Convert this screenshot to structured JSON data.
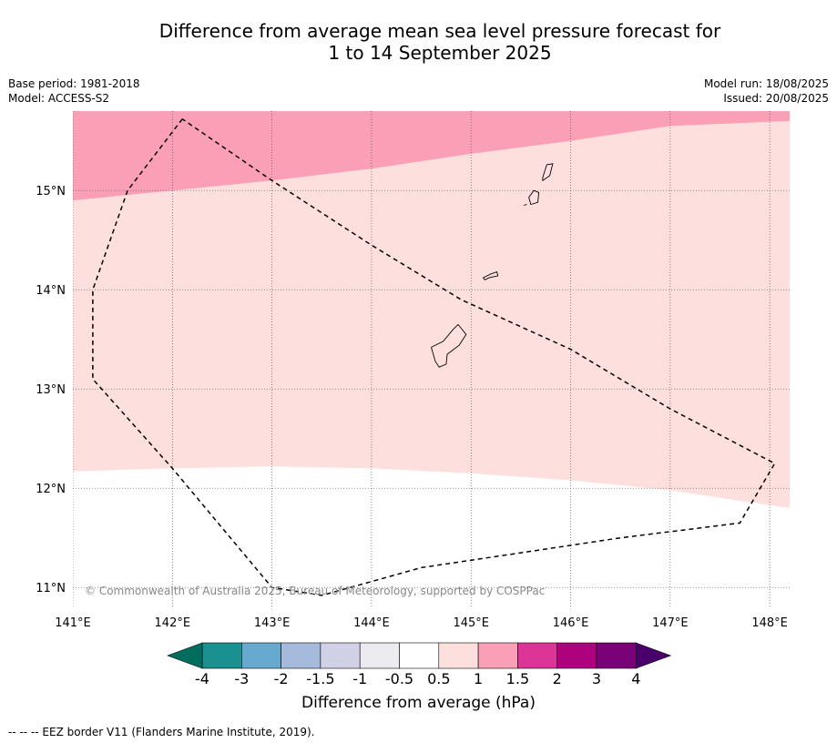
{
  "title_line1": "Difference from average mean sea level pressure forecast for",
  "title_line2": "1 to 14 September 2025",
  "meta_left": {
    "base_period": "Base period: 1981-2018",
    "model": "Model: ACCESS-S2"
  },
  "meta_right": {
    "model_run": "Model run: 18/08/2025",
    "issued": "Issued: 20/08/2025"
  },
  "copyright": "© Commonwealth of Australia 2025, Bureau of Meteorology, supported by COSPPac",
  "map": {
    "lon_range": [
      141,
      148.2
    ],
    "lat_range": [
      10.8,
      15.8
    ],
    "lon_ticks": [
      {
        "value": 141,
        "label": "141°E"
      },
      {
        "value": 142,
        "label": "142°E"
      },
      {
        "value": 143,
        "label": "143°E"
      },
      {
        "value": 144,
        "label": "144°E"
      },
      {
        "value": 145,
        "label": "145°E"
      },
      {
        "value": 146,
        "label": "146°E"
      },
      {
        "value": 147,
        "label": "147°E"
      },
      {
        "value": 148,
        "label": "148°E"
      }
    ],
    "lat_ticks": [
      {
        "value": 15,
        "label": "15°N"
      },
      {
        "value": 14,
        "label": "14°N"
      },
      {
        "value": 13,
        "label": "13°N"
      },
      {
        "value": 12,
        "label": "12°N"
      },
      {
        "value": 11,
        "label": "11°N"
      }
    ],
    "band_colors": {
      "above_1": "#fa9fb5",
      "from_0_5_to_1": "#fde0dd",
      "below_0_5": "#ffffff"
    },
    "contour_1_0": [
      [
        141,
        14.9
      ],
      [
        142,
        15.0
      ],
      [
        143,
        15.1
      ],
      [
        144,
        15.22
      ],
      [
        145,
        15.37
      ],
      [
        146,
        15.5
      ],
      [
        147,
        15.65
      ],
      [
        148.2,
        15.7
      ]
    ],
    "contour_0_5": [
      [
        141,
        12.17
      ],
      [
        142,
        12.2
      ],
      [
        143,
        12.22
      ],
      [
        144,
        12.2
      ],
      [
        145,
        12.15
      ],
      [
        146,
        12.08
      ],
      [
        147,
        11.98
      ],
      [
        148.2,
        11.8
      ]
    ],
    "eez_border": [
      [
        142.1,
        15.72
      ],
      [
        141.55,
        15.0
      ],
      [
        141.2,
        14.0
      ],
      [
        141.2,
        13.1
      ],
      [
        142.0,
        12.2
      ],
      [
        143.0,
        11.0
      ],
      [
        143.5,
        10.92
      ],
      [
        144.5,
        11.2
      ],
      [
        145.5,
        11.35
      ],
      [
        146.5,
        11.5
      ],
      [
        147.7,
        11.65
      ],
      [
        148.05,
        12.25
      ],
      [
        147.0,
        12.8
      ],
      [
        146.0,
        13.4
      ],
      [
        144.9,
        13.9
      ],
      [
        144.0,
        14.45
      ],
      [
        143.0,
        15.1
      ],
      [
        142.1,
        15.72
      ]
    ],
    "islands": [
      [
        [
          144.6,
          13.42
        ],
        [
          144.72,
          13.48
        ],
        [
          144.82,
          13.6
        ],
        [
          144.87,
          13.65
        ],
        [
          144.95,
          13.55
        ],
        [
          144.88,
          13.44
        ],
        [
          144.76,
          13.35
        ],
        [
          144.75,
          13.25
        ],
        [
          144.68,
          13.22
        ],
        [
          144.64,
          13.28
        ],
        [
          144.6,
          13.42
        ]
      ],
      [
        [
          145.12,
          14.12
        ],
        [
          145.2,
          14.16
        ],
        [
          145.26,
          14.18
        ],
        [
          145.27,
          14.14
        ],
        [
          145.18,
          14.12
        ],
        [
          145.14,
          14.1
        ],
        [
          145.12,
          14.12
        ]
      ],
      [
        [
          145.58,
          14.93
        ],
        [
          145.63,
          15.0
        ],
        [
          145.68,
          14.98
        ],
        [
          145.67,
          14.88
        ],
        [
          145.6,
          14.86
        ],
        [
          145.58,
          14.93
        ]
      ],
      [
        [
          145.72,
          15.13
        ],
        [
          145.76,
          15.26
        ],
        [
          145.82,
          15.27
        ],
        [
          145.79,
          15.15
        ],
        [
          145.72,
          15.1
        ],
        [
          145.72,
          15.13
        ]
      ],
      [
        [
          145.53,
          14.85
        ],
        [
          145.56,
          14.86
        ]
      ]
    ]
  },
  "colorbar": {
    "colors": [
      "#006d5e",
      "#1a9090",
      "#67a9cf",
      "#a6badb",
      "#d0d1e6",
      "#ececf0",
      "#ffffff",
      "#fde0dd",
      "#fa9fb5",
      "#dd3497",
      "#ae017e",
      "#7a0177",
      "#49006a"
    ],
    "labels": [
      "-4",
      "-3",
      "-2",
      "-1.5",
      "-1",
      "-0.5",
      "0.5",
      "1",
      "1.5",
      "2",
      "3",
      "4"
    ],
    "title": "Difference from average (hPa)"
  },
  "footer": "--  --  -- EEZ border V11 (Flanders Marine Institute, 2019)."
}
